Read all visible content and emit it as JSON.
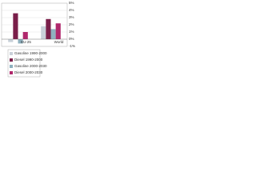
{
  "chart_data": {
    "type": "bar",
    "categories": [
      "EU-25",
      "World"
    ],
    "series": [
      {
        "name": "Gasoline 1990-2000",
        "color": "#c9d1d9",
        "values": [
          -0.4,
          1.8
        ]
      },
      {
        "name": "Diesel 1990-2000",
        "color": "#7a1f4a",
        "values": [
          3.6,
          2.8
        ]
      },
      {
        "name": "Gasoline 2000-2030",
        "color": "#8fb1bf",
        "values": [
          -0.6,
          1.4
        ]
      },
      {
        "name": "Diesel 2000-2030",
        "color": "#b0286c",
        "values": [
          1.0,
          2.2
        ]
      }
    ],
    "ylim": [
      -1,
      5
    ],
    "yticks": [
      {
        "value": -1,
        "label": "-1%"
      },
      {
        "value": 0,
        "label": "0%"
      },
      {
        "value": 1,
        "label": "1%"
      },
      {
        "value": 2,
        "label": "2%"
      },
      {
        "value": 3,
        "label": "3%"
      },
      {
        "value": 4,
        "label": "4%"
      },
      {
        "value": 5,
        "label": "5%"
      }
    ],
    "grid": true
  }
}
